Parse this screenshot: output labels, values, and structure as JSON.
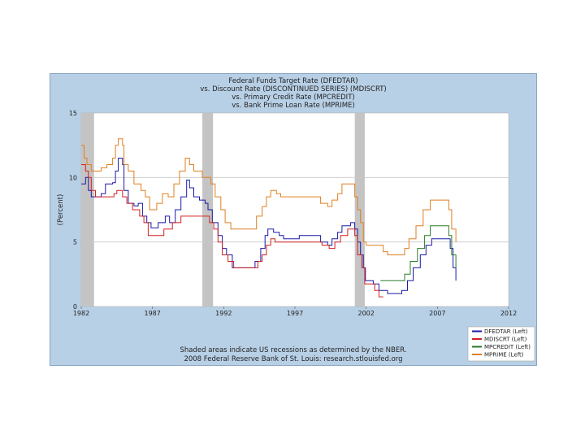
{
  "chart_data": {
    "type": "line",
    "title_lines": [
      "Federal Funds Target Rate (DFEDTAR)",
      "vs. Discount Rate (DISCONTINUED SERIES) (MDISCRT)",
      "vs. Primary Credit Rate (MPCREDIT)",
      "vs. Bank Prime Loan Rate (MPRIME)"
    ],
    "ylabel": "(Percent)",
    "xlabel": "",
    "xlim": [
      1982,
      2012
    ],
    "ylim": [
      0,
      15
    ],
    "x_ticks": [
      1982,
      1987,
      1992,
      1997,
      2002,
      2007,
      2012
    ],
    "y_ticks": [
      0,
      5,
      10,
      15
    ],
    "x_tick_labels": [
      "1982",
      "1987",
      "1992",
      "1997",
      "2002",
      "2007",
      "2012"
    ],
    "y_tick_labels": [
      "0",
      "5",
      "10",
      "15"
    ],
    "grid": true,
    "recessions": [
      [
        1982.0,
        1982.9
      ],
      [
        1990.5,
        1991.25
      ],
      [
        2001.2,
        2001.9
      ]
    ],
    "notes": [
      "Shaded areas indicate US recessions as determined by the NBER.",
      "2008 Federal Reserve Bank of St. Louis: research.stlouisfed.org"
    ],
    "legend_position": "bottom-right",
    "series": [
      {
        "name": "DFEDTAR (Left)",
        "color": "#1a1aa8",
        "points": [
          [
            1982.0,
            9.5
          ],
          [
            1982.3,
            10
          ],
          [
            1982.5,
            9
          ],
          [
            1982.7,
            8.5
          ],
          [
            1983.0,
            8.5
          ],
          [
            1983.4,
            8.75
          ],
          [
            1983.7,
            9.5
          ],
          [
            1984.2,
            9.6
          ],
          [
            1984.4,
            10.5
          ],
          [
            1984.6,
            11.5
          ],
          [
            1984.9,
            11
          ],
          [
            1985.0,
            9
          ],
          [
            1985.3,
            8
          ],
          [
            1985.7,
            7.8
          ],
          [
            1986.0,
            8
          ],
          [
            1986.3,
            7
          ],
          [
            1986.6,
            6.5
          ],
          [
            1986.9,
            6.1
          ],
          [
            1987.4,
            6.5
          ],
          [
            1987.9,
            7
          ],
          [
            1988.2,
            6.5
          ],
          [
            1988.6,
            7.5
          ],
          [
            1989.0,
            8.5
          ],
          [
            1989.4,
            9.8
          ],
          [
            1989.6,
            9.2
          ],
          [
            1989.9,
            8.5
          ],
          [
            1990.3,
            8.25
          ],
          [
            1990.7,
            8
          ],
          [
            1990.9,
            7.5
          ],
          [
            1991.2,
            6.5
          ],
          [
            1991.6,
            5.5
          ],
          [
            1991.9,
            4.5
          ],
          [
            1992.2,
            4
          ],
          [
            1992.6,
            3
          ],
          [
            1993.0,
            3
          ],
          [
            1994.0,
            3
          ],
          [
            1994.2,
            3.5
          ],
          [
            1994.6,
            4.5
          ],
          [
            1994.9,
            5.5
          ],
          [
            1995.1,
            6
          ],
          [
            1995.5,
            5.75
          ],
          [
            1995.9,
            5.5
          ],
          [
            1996.2,
            5.25
          ],
          [
            1996.9,
            5.25
          ],
          [
            1997.3,
            5.5
          ],
          [
            1998.5,
            5.5
          ],
          [
            1998.8,
            5
          ],
          [
            1999.3,
            4.75
          ],
          [
            1999.6,
            5.25
          ],
          [
            2000.0,
            5.75
          ],
          [
            2000.3,
            6.25
          ],
          [
            2000.9,
            6.5
          ],
          [
            2001.2,
            6
          ],
          [
            2001.4,
            5
          ],
          [
            2001.6,
            4
          ],
          [
            2001.8,
            3
          ],
          [
            2001.95,
            2
          ],
          [
            2002.5,
            1.75
          ],
          [
            2002.9,
            1.25
          ],
          [
            2003.5,
            1
          ],
          [
            2004.5,
            1.25
          ],
          [
            2004.9,
            2
          ],
          [
            2005.3,
            3
          ],
          [
            2005.8,
            4
          ],
          [
            2006.2,
            4.75
          ],
          [
            2006.6,
            5.25
          ],
          [
            2007.7,
            5.25
          ],
          [
            2007.9,
            4.5
          ],
          [
            2008.1,
            3
          ],
          [
            2008.3,
            2
          ]
        ]
      },
      {
        "name": "MDISCRT (Left)",
        "color": "#d42020",
        "points": [
          [
            1982.0,
            11
          ],
          [
            1982.3,
            10.5
          ],
          [
            1982.5,
            10
          ],
          [
            1982.7,
            9
          ],
          [
            1983.0,
            8.5
          ],
          [
            1984.3,
            8.75
          ],
          [
            1984.5,
            9
          ],
          [
            1984.9,
            8.5
          ],
          [
            1985.2,
            8
          ],
          [
            1985.6,
            7.5
          ],
          [
            1986.1,
            7
          ],
          [
            1986.4,
            6.5
          ],
          [
            1986.7,
            5.5
          ],
          [
            1987.3,
            5.5
          ],
          [
            1987.8,
            6
          ],
          [
            1988.4,
            6.5
          ],
          [
            1989.0,
            7
          ],
          [
            1990.7,
            7
          ],
          [
            1991.0,
            6.5
          ],
          [
            1991.3,
            6
          ],
          [
            1991.6,
            5
          ],
          [
            1991.9,
            4
          ],
          [
            1992.3,
            3.5
          ],
          [
            1992.7,
            3
          ],
          [
            1993.0,
            3
          ],
          [
            1994.1,
            3
          ],
          [
            1994.4,
            3.5
          ],
          [
            1994.7,
            4
          ],
          [
            1995.0,
            4.75
          ],
          [
            1995.3,
            5.25
          ],
          [
            1995.6,
            5
          ],
          [
            1996.0,
            5
          ],
          [
            1998.5,
            5
          ],
          [
            1998.9,
            4.75
          ],
          [
            1999.4,
            4.5
          ],
          [
            1999.8,
            5
          ],
          [
            2000.2,
            5.5
          ],
          [
            2000.7,
            6
          ],
          [
            2001.2,
            5.5
          ],
          [
            2001.4,
            4
          ],
          [
            2001.7,
            3
          ],
          [
            2001.9,
            1.75
          ],
          [
            2002.6,
            1.25
          ],
          [
            2002.9,
            0.75
          ],
          [
            2003.2,
            0.75
          ]
        ]
      },
      {
        "name": "MPCREDIT (Left)",
        "color": "#2a7a2a",
        "points": [
          [
            2003.0,
            2
          ],
          [
            2004.5,
            2
          ],
          [
            2004.7,
            2.5
          ],
          [
            2005.1,
            3.5
          ],
          [
            2005.6,
            4.5
          ],
          [
            2006.1,
            5.5
          ],
          [
            2006.5,
            6.25
          ],
          [
            2007.6,
            6.25
          ],
          [
            2007.8,
            5.5
          ],
          [
            2008.0,
            4
          ],
          [
            2008.3,
            3
          ]
        ]
      },
      {
        "name": "MPRIME (Left)",
        "color": "#e07f20",
        "points": [
          [
            1982.0,
            12.5
          ],
          [
            1982.2,
            11.5
          ],
          [
            1982.4,
            11
          ],
          [
            1982.7,
            10.5
          ],
          [
            1983.0,
            10.5
          ],
          [
            1983.4,
            10.75
          ],
          [
            1983.8,
            11
          ],
          [
            1984.2,
            11.5
          ],
          [
            1984.4,
            12.5
          ],
          [
            1984.6,
            13
          ],
          [
            1984.9,
            12.5
          ],
          [
            1985.0,
            11
          ],
          [
            1985.3,
            10.5
          ],
          [
            1985.7,
            9.5
          ],
          [
            1986.2,
            9
          ],
          [
            1986.5,
            8.5
          ],
          [
            1986.8,
            7.5
          ],
          [
            1987.3,
            8
          ],
          [
            1987.7,
            8.75
          ],
          [
            1988.1,
            8.5
          ],
          [
            1988.5,
            9.5
          ],
          [
            1988.9,
            10.5
          ],
          [
            1989.3,
            11.5
          ],
          [
            1989.6,
            11
          ],
          [
            1989.9,
            10.5
          ],
          [
            1990.5,
            10
          ],
          [
            1990.8,
            10
          ],
          [
            1991.1,
            9.5
          ],
          [
            1991.4,
            8.5
          ],
          [
            1991.8,
            7.5
          ],
          [
            1992.1,
            6.5
          ],
          [
            1992.5,
            6
          ],
          [
            1993.0,
            6
          ],
          [
            1994.0,
            6
          ],
          [
            1994.3,
            7
          ],
          [
            1994.7,
            7.75
          ],
          [
            1995.0,
            8.5
          ],
          [
            1995.3,
            9
          ],
          [
            1995.7,
            8.75
          ],
          [
            1996.0,
            8.5
          ],
          [
            1997.3,
            8.5
          ],
          [
            1998.5,
            8.5
          ],
          [
            1998.8,
            8
          ],
          [
            1999.3,
            7.75
          ],
          [
            1999.6,
            8.25
          ],
          [
            2000.0,
            8.75
          ],
          [
            2000.3,
            9.5
          ],
          [
            2000.8,
            9.5
          ],
          [
            2001.2,
            8.5
          ],
          [
            2001.4,
            7.5
          ],
          [
            2001.6,
            6.5
          ],
          [
            2001.8,
            5
          ],
          [
            2002.0,
            4.75
          ],
          [
            2002.9,
            4.75
          ],
          [
            2003.2,
            4.25
          ],
          [
            2003.5,
            4
          ],
          [
            2004.5,
            4
          ],
          [
            2004.7,
            4.5
          ],
          [
            2005.0,
            5.25
          ],
          [
            2005.5,
            6.25
          ],
          [
            2006.0,
            7.5
          ],
          [
            2006.5,
            8.25
          ],
          [
            2007.6,
            8.25
          ],
          [
            2007.8,
            7.5
          ],
          [
            2008.0,
            6
          ],
          [
            2008.3,
            5
          ]
        ]
      }
    ]
  }
}
